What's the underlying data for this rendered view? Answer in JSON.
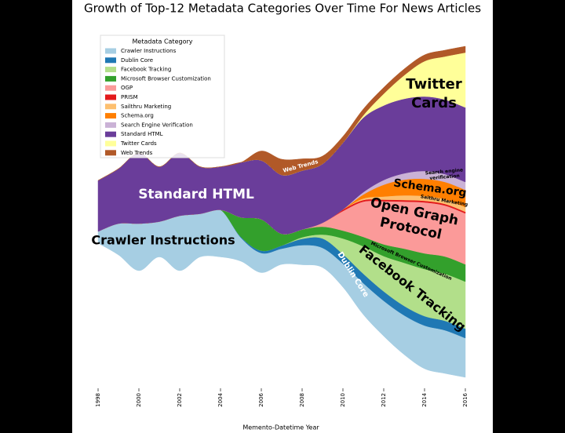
{
  "chart_data": {
    "type": "streamgraph",
    "title": "Growth of Top-12 Metadata Categories Over Time For News Articles",
    "x_label": "Memento-Datetime Year",
    "legend_title": "Metadata Category",
    "legend_position": "upper left",
    "xlim": [
      1998,
      2016
    ],
    "xticks": [
      1998,
      2000,
      2002,
      2004,
      2006,
      2008,
      2010,
      2012,
      2014,
      2016
    ],
    "x": [
      1998,
      1999,
      2000,
      2001,
      2002,
      2003,
      2004,
      2005,
      2006,
      2007,
      2008,
      2009,
      2010,
      2011,
      2012,
      2013,
      2014,
      2015,
      2016
    ],
    "series": [
      {
        "name": "Crawler Instructions",
        "color": "#a6cee3",
        "values": [
          15,
          40,
          60,
          45,
          70,
          55,
          60,
          30,
          25,
          20,
          25,
          25,
          30,
          40,
          45,
          50,
          55,
          55,
          50
        ]
      },
      {
        "name": "Dublin Core",
        "color": "#1f78b4",
        "values": [
          0,
          0,
          0,
          0,
          0,
          0,
          0,
          1,
          3,
          4,
          8,
          12,
          12,
          12,
          12,
          12,
          12,
          12,
          12
        ]
      },
      {
        "name": "Facebook Tracking",
        "color": "#b2df8a",
        "values": [
          0,
          0,
          0,
          0,
          0,
          0,
          0,
          0,
          0,
          0,
          2,
          5,
          20,
          35,
          45,
          55,
          60,
          60,
          60
        ]
      },
      {
        "name": "Microsoft Browser Customization",
        "color": "#33a02c",
        "values": [
          0,
          0,
          0,
          0,
          0,
          0,
          0,
          25,
          40,
          15,
          10,
          10,
          10,
          12,
          15,
          18,
          20,
          22,
          22
        ]
      },
      {
        "name": "OGP",
        "color": "#fb9a99",
        "values": [
          0,
          0,
          0,
          0,
          0,
          0,
          0,
          0,
          0,
          0,
          0,
          5,
          25,
          45,
          55,
          60,
          65,
          65,
          65
        ]
      },
      {
        "name": "PRISM",
        "color": "#e31a1c",
        "values": [
          0,
          0,
          0,
          0,
          0,
          0,
          0,
          0,
          0,
          0,
          0,
          0,
          2,
          2,
          2,
          2,
          2,
          2,
          2
        ]
      },
      {
        "name": "Sailthru Marketing",
        "color": "#fdbf6f",
        "values": [
          0,
          0,
          0,
          0,
          0,
          0,
          0,
          0,
          0,
          0,
          0,
          0,
          0,
          2,
          4,
          6,
          6,
          6,
          6
        ]
      },
      {
        "name": "Schema.org",
        "color": "#ff7f00",
        "values": [
          0,
          0,
          0,
          0,
          0,
          0,
          0,
          0,
          0,
          0,
          0,
          0,
          0,
          5,
          15,
          20,
          22,
          22,
          22
        ]
      },
      {
        "name": "Search Engine Verification",
        "color": "#cab2d6",
        "values": [
          0,
          0,
          0,
          0,
          0,
          0,
          0,
          0,
          0,
          0,
          0,
          0,
          0,
          3,
          6,
          8,
          10,
          10,
          10
        ]
      },
      {
        "name": "Standard HTML",
        "color": "#6a3d9a",
        "values": [
          65,
          70,
          90,
          70,
          80,
          60,
          55,
          70,
          75,
          75,
          75,
          75,
          85,
          95,
          95,
          95,
          95,
          95,
          95
        ]
      },
      {
        "name": "Twitter Cards",
        "color": "#ffff99",
        "values": [
          0,
          0,
          0,
          0,
          0,
          0,
          0,
          0,
          0,
          0,
          0,
          0,
          0,
          3,
          15,
          30,
          45,
          55,
          70
        ]
      },
      {
        "name": "Web Trends",
        "color": "#b15928",
        "values": [
          0,
          0,
          0,
          0,
          0,
          0,
          0,
          0,
          12,
          20,
          15,
          10,
          8,
          8,
          8,
          8,
          8,
          8,
          8
        ]
      }
    ],
    "annotations": [
      [
        "Standard HTML"
      ],
      [
        "Crawler Instructions"
      ],
      [
        "Twitter",
        "Cards"
      ],
      [
        "Schema.org"
      ],
      [
        "Open Graph",
        "Protocol"
      ],
      [
        "Facebook Tracking"
      ],
      [
        "Dublin Core"
      ],
      [
        "Microsoft Browser Customization"
      ],
      [
        "Search engine",
        "verification"
      ],
      [
        "Saithru Marketing"
      ],
      [
        "Web Trends"
      ]
    ]
  }
}
